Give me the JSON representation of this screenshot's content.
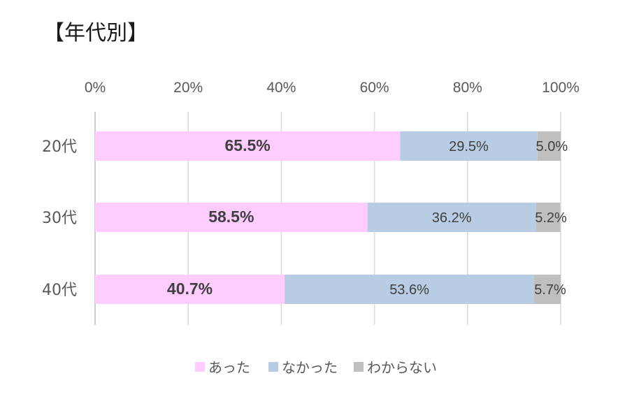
{
  "title": "【年代別】",
  "chart_data": {
    "type": "bar",
    "orientation": "horizontal",
    "stacked": "percent",
    "categories": [
      "20代",
      "30代",
      "40代"
    ],
    "series": [
      {
        "name": "あった",
        "values": [
          65.5,
          58.5,
          40.7
        ],
        "labels": [
          "65.5%",
          "58.5%",
          "40.7%"
        ],
        "color": "#FFCCFF",
        "label_bold": true
      },
      {
        "name": "なかった",
        "values": [
          29.5,
          36.2,
          53.6
        ],
        "labels": [
          "29.5%",
          "36.2%",
          "53.6%"
        ],
        "color": "#B8CCE4",
        "label_bold": false
      },
      {
        "name": "わからない",
        "values": [
          5.0,
          5.2,
          5.7
        ],
        "labels": [
          "5.0%",
          "5.2%",
          "5.7%"
        ],
        "color": "#BFBFBF",
        "label_bold": false
      }
    ],
    "xlim": [
      0,
      100
    ],
    "x_ticks": [
      "0%",
      "20%",
      "40%",
      "60%",
      "80%",
      "100%"
    ],
    "x_axis_position": "top",
    "grid": true,
    "legend": "bottom"
  }
}
